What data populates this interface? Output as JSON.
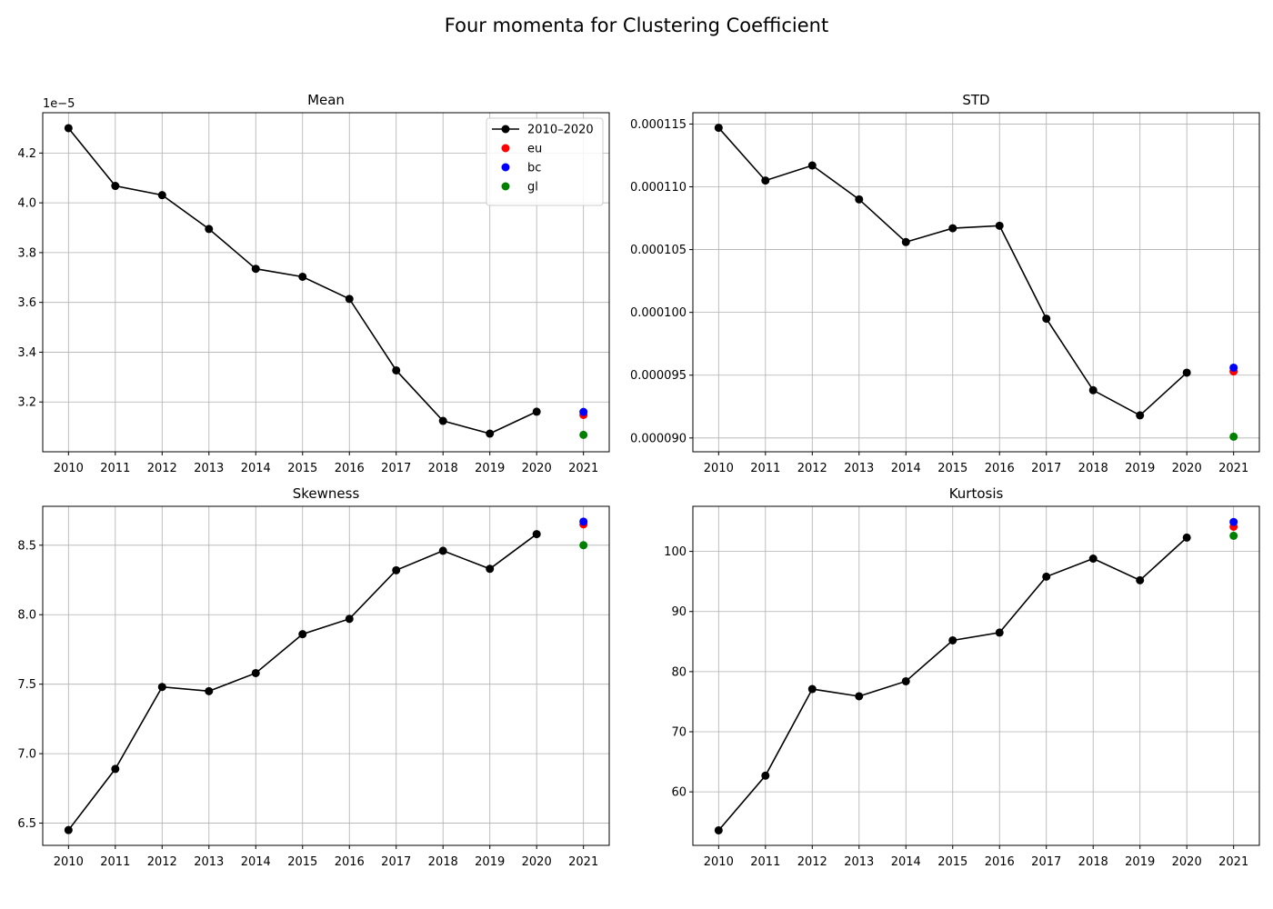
{
  "figure_title": "Four momenta for Clustering Coefficient",
  "colors": {
    "line": "#000000",
    "eu": "#ff0000",
    "bc": "#0000ff",
    "gl": "#008000",
    "grid": "#b0b0b0"
  },
  "chart_data": [
    {
      "type": "line",
      "title": "Mean",
      "x": [
        2010,
        2011,
        2012,
        2013,
        2014,
        2015,
        2016,
        2017,
        2018,
        2019,
        2020
      ],
      "series": [
        {
          "name": "2010–2020",
          "values": [
            4.3e-05,
            4.068e-05,
            4.031e-05,
            3.895e-05,
            3.735e-05,
            3.703e-05,
            3.614e-05,
            3.327e-05,
            3.124e-05,
            3.073e-05,
            3.161e-05
          ]
        },
        {
          "name": "eu",
          "x": [
            2021
          ],
          "values": [
            3.148e-05
          ]
        },
        {
          "name": "bc",
          "x": [
            2021
          ],
          "values": [
            3.16e-05
          ]
        },
        {
          "name": "gl",
          "x": [
            2021
          ],
          "values": [
            3.068e-05
          ]
        }
      ],
      "xticks": [
        "2010",
        "2011",
        "2012",
        "2013",
        "2014",
        "2015",
        "2016",
        "2017",
        "2018",
        "2019",
        "2020",
        "2021"
      ],
      "yticks": [
        "3.2",
        "3.4",
        "3.6",
        "3.8",
        "4.0",
        "4.2"
      ],
      "ytick_values": [
        3.2e-05,
        3.4e-05,
        3.6e-05,
        3.8e-05,
        4e-05,
        4.2e-05
      ],
      "offset_label": "1e−5",
      "xlim": [
        2009.45,
        2021.55
      ],
      "ylim": [
        3e-05,
        4.362e-05
      ],
      "grid": true,
      "legend": "upper right"
    },
    {
      "type": "line",
      "title": "STD",
      "x": [
        2010,
        2011,
        2012,
        2013,
        2014,
        2015,
        2016,
        2017,
        2018,
        2019,
        2020
      ],
      "series": [
        {
          "name": "2010–2020",
          "values": [
            0.0001147,
            0.0001105,
            0.0001117,
            0.000109,
            0.0001056,
            0.0001067,
            0.0001069,
            9.95e-05,
            9.38e-05,
            9.18e-05,
            9.52e-05
          ]
        },
        {
          "name": "eu",
          "x": [
            2021
          ],
          "values": [
            9.53e-05
          ]
        },
        {
          "name": "bc",
          "x": [
            2021
          ],
          "values": [
            9.56e-05
          ]
        },
        {
          "name": "gl",
          "x": [
            2021
          ],
          "values": [
            9.01e-05
          ]
        }
      ],
      "xticks": [
        "2010",
        "2011",
        "2012",
        "2013",
        "2014",
        "2015",
        "2016",
        "2017",
        "2018",
        "2019",
        "2020",
        "2021"
      ],
      "yticks": [
        "0.000090",
        "0.000095",
        "0.000100",
        "0.000105",
        "0.000110",
        "0.000115"
      ],
      "ytick_values": [
        9e-05,
        9.5e-05,
        0.0001,
        0.000105,
        0.00011,
        0.000115
      ],
      "xlim": [
        2009.45,
        2021.55
      ],
      "ylim": [
        8.89e-05,
        0.0001159
      ],
      "grid": true
    },
    {
      "type": "line",
      "title": "Skewness",
      "x": [
        2010,
        2011,
        2012,
        2013,
        2014,
        2015,
        2016,
        2017,
        2018,
        2019,
        2020
      ],
      "series": [
        {
          "name": "2010–2020",
          "values": [
            6.45,
            6.89,
            7.48,
            7.45,
            7.58,
            7.86,
            7.97,
            8.32,
            8.46,
            8.33,
            8.58
          ]
        },
        {
          "name": "eu",
          "x": [
            2021
          ],
          "values": [
            8.65
          ]
        },
        {
          "name": "bc",
          "x": [
            2021
          ],
          "values": [
            8.67
          ]
        },
        {
          "name": "gl",
          "x": [
            2021
          ],
          "values": [
            8.5
          ]
        }
      ],
      "xticks": [
        "2010",
        "2011",
        "2012",
        "2013",
        "2014",
        "2015",
        "2016",
        "2017",
        "2018",
        "2019",
        "2020",
        "2021"
      ],
      "yticks": [
        "6.5",
        "7.0",
        "7.5",
        "8.0",
        "8.5"
      ],
      "ytick_values": [
        6.5,
        7.0,
        7.5,
        8.0,
        8.5
      ],
      "xlim": [
        2009.45,
        2021.55
      ],
      "ylim": [
        6.34,
        8.78
      ],
      "grid": true
    },
    {
      "type": "line",
      "title": "Kurtosis",
      "x": [
        2010,
        2011,
        2012,
        2013,
        2014,
        2015,
        2016,
        2017,
        2018,
        2019,
        2020
      ],
      "series": [
        {
          "name": "2010–2020",
          "values": [
            53.6,
            62.7,
            77.1,
            75.9,
            78.4,
            85.2,
            86.5,
            95.8,
            98.8,
            95.2,
            102.3
          ]
        },
        {
          "name": "eu",
          "x": [
            2021
          ],
          "values": [
            104.1
          ]
        },
        {
          "name": "bc",
          "x": [
            2021
          ],
          "values": [
            104.9
          ]
        },
        {
          "name": "gl",
          "x": [
            2021
          ],
          "values": [
            102.6
          ]
        }
      ],
      "xticks": [
        "2010",
        "2011",
        "2012",
        "2013",
        "2014",
        "2015",
        "2016",
        "2017",
        "2018",
        "2019",
        "2020",
        "2021"
      ],
      "yticks": [
        "60",
        "70",
        "80",
        "90",
        "100"
      ],
      "ytick_values": [
        60,
        70,
        80,
        90,
        100
      ],
      "xlim": [
        2009.45,
        2021.55
      ],
      "ylim": [
        51.1,
        107.5
      ],
      "grid": true
    }
  ]
}
